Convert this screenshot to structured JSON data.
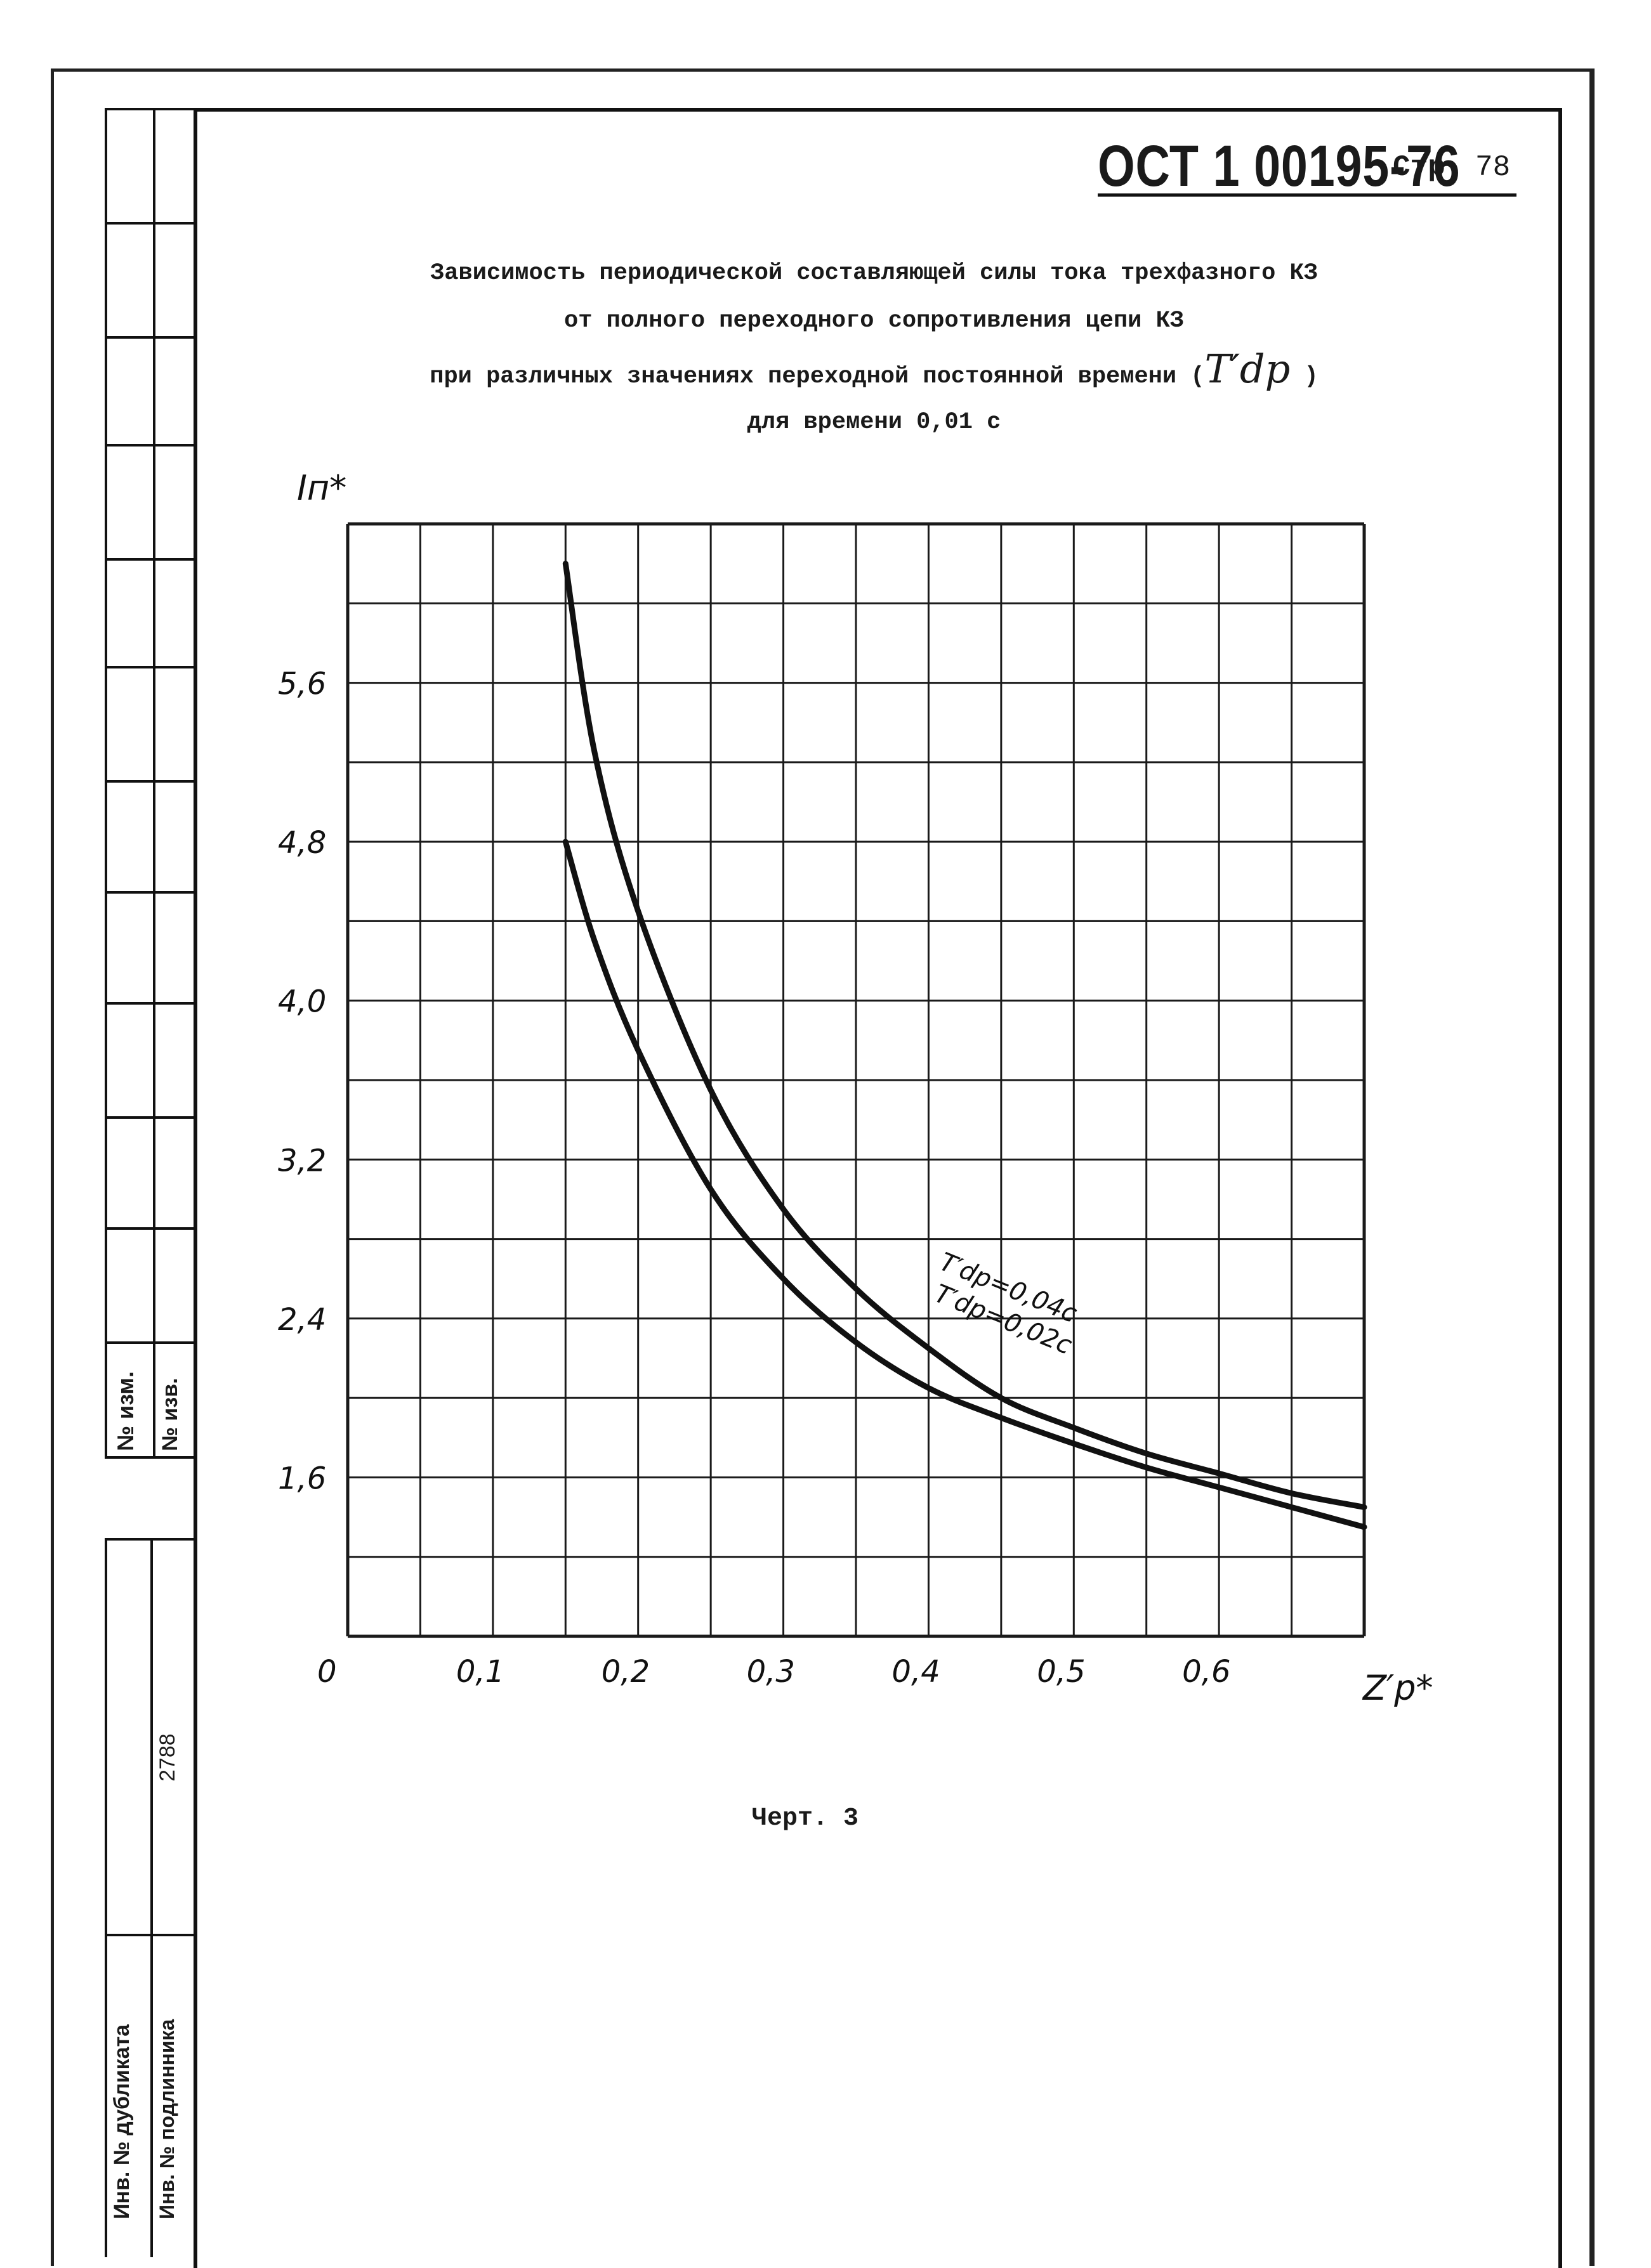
{
  "header": {
    "doc_code": "ОСТ 1 00195-76",
    "page_label": "Стр.",
    "page_number": "78"
  },
  "title_lines": [
    "Зависимость периодической составляющей силы тока трехфазного КЗ",
    "от полного переходного сопротивления цепи КЗ",
    "при различных значениях переходной постоянной времени (",
    "для времени 0,01 с"
  ],
  "title_symbol": "T′dp",
  "title_close": ")",
  "caption": "Черт. 3",
  "margin": {
    "top_labels": [
      "№ изм.",
      "№ изв."
    ],
    "bottom_labels": [
      "Инв. № дубликата",
      "Инв. № подлинника"
    ],
    "archive_number": "2788"
  },
  "chart_data": {
    "type": "line",
    "title": "",
    "xlabel": "Z′p*",
    "ylabel": "Iп*",
    "xlim": [
      0,
      0.7
    ],
    "ylim": [
      0.8,
      6.4
    ],
    "x_ticks": [
      0,
      0.1,
      0.2,
      0.3,
      0.4,
      0.5,
      0.6
    ],
    "x_tick_labels": [
      "0",
      "0,1",
      "0,2",
      "0,3",
      "0,4",
      "0,5",
      "0,6"
    ],
    "y_ticks": [
      1.6,
      2.4,
      3.2,
      4.0,
      4.8,
      5.6
    ],
    "y_tick_labels": [
      "1,6",
      "2,4",
      "3,2",
      "4,0",
      "4,8",
      "5,6"
    ],
    "grid": true,
    "series": [
      {
        "name": "T′dp=0,04с",
        "x": [
          0.15,
          0.17,
          0.2,
          0.25,
          0.3,
          0.35,
          0.4,
          0.45,
          0.5,
          0.55,
          0.6,
          0.65,
          0.7
        ],
        "y": [
          6.2,
          5.25,
          4.45,
          3.55,
          2.95,
          2.55,
          2.25,
          2.0,
          1.85,
          1.72,
          1.62,
          1.52,
          1.45
        ]
      },
      {
        "name": "T′dp=0,02с",
        "x": [
          0.15,
          0.17,
          0.2,
          0.25,
          0.3,
          0.35,
          0.4,
          0.45,
          0.5,
          0.55,
          0.6,
          0.65,
          0.7
        ],
        "y": [
          4.8,
          4.3,
          3.75,
          3.05,
          2.6,
          2.28,
          2.05,
          1.9,
          1.77,
          1.65,
          1.55,
          1.45,
          1.35
        ]
      }
    ]
  }
}
